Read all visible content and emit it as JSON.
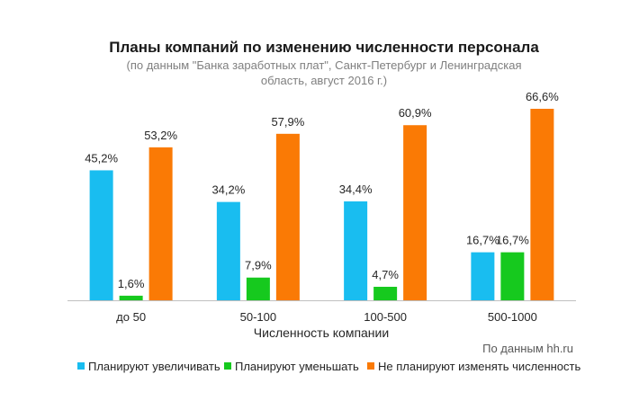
{
  "chart_data": {
    "type": "bar",
    "title": "Планы компаний по изменению численности персонала",
    "subtitle_lines": [
      "(по данным \"Банка заработных плат\", Санкт-Петербург и Ленинградская",
      "область, август 2016 г.)"
    ],
    "xlabel": "Численность компании",
    "ylabel": "",
    "ylim": [
      0,
      70
    ],
    "grid": false,
    "legend_position": "bottom",
    "categories": [
      "до 50",
      "50-100",
      "100-500",
      "500-1000"
    ],
    "series": [
      {
        "name": "Планируют увеличивать",
        "color": "#19BDF0",
        "values": [
          45.2,
          34.2,
          34.4,
          16.7
        ],
        "labels": [
          "45,2%",
          "34,2%",
          "34,4%",
          "16,7%"
        ]
      },
      {
        "name": "Планируют уменьшать",
        "color": "#16C91E",
        "values": [
          1.6,
          7.9,
          4.7,
          16.7
        ],
        "labels": [
          "1,6%",
          "7,9%",
          "4,7%",
          "16,7%"
        ]
      },
      {
        "name": "Не планируют изменять численность",
        "color": "#FA7A05",
        "values": [
          53.2,
          57.9,
          60.9,
          66.6
        ],
        "labels": [
          "53,2%",
          "57,9%",
          "60,9%",
          "66,6%"
        ]
      }
    ],
    "source": "По данным hh.ru"
  }
}
